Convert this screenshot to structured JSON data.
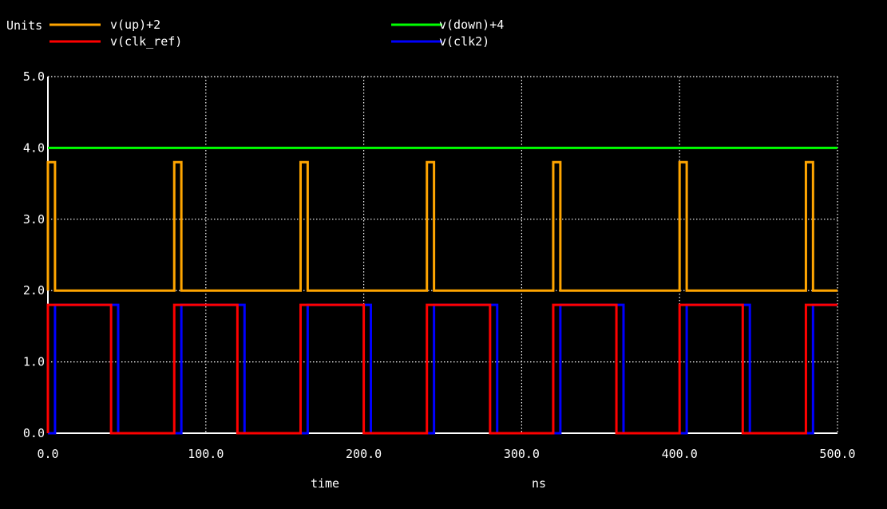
{
  "chart_data": {
    "type": "line",
    "ylabel": "Units",
    "xlabel": "time",
    "xunit": "ns",
    "xlim": [
      0,
      500
    ],
    "ylim": [
      0,
      5
    ],
    "xticks": [
      0,
      100,
      200,
      300,
      400,
      500
    ],
    "xtick_labels": [
      "0.0",
      "100.0",
      "200.0",
      "300.0",
      "400.0",
      "500.0"
    ],
    "yticks": [
      0,
      1,
      2,
      3,
      4,
      5
    ],
    "ytick_labels": [
      "0.0",
      "1.0",
      "2.0",
      "3.0",
      "4.0",
      "5.0"
    ],
    "grid": true,
    "background_color": "#000000",
    "axis_color": "#ffffff",
    "period_ns": 80,
    "series": [
      {
        "name": "v(up)+2",
        "color": "#ffa500",
        "baseline": 2.0,
        "high": 3.8,
        "pulse_starts_ns": [
          0,
          80,
          160,
          240,
          320,
          400,
          480
        ],
        "pulse_width_ns": 4.5
      },
      {
        "name": "v(clk_ref)",
        "color": "#ff0000",
        "low": 0.0,
        "high": 1.8,
        "rise_ns": [
          0,
          80,
          160,
          240,
          320,
          400,
          480
        ],
        "fall_ns": [
          40,
          120,
          200,
          280,
          360,
          440
        ]
      },
      {
        "name": "v(down)+4",
        "color": "#00ff00",
        "value": 4.0
      },
      {
        "name": "v(clk2)",
        "color": "#0000ff",
        "low": 0.0,
        "high": 1.8,
        "rise_ns": [
          4.5,
          84.5,
          164.5,
          244.5,
          324.5,
          404.5,
          484.5
        ],
        "fall_ns": [
          44.5,
          124.5,
          204.5,
          284.5,
          364.5,
          444.5
        ]
      }
    ]
  }
}
